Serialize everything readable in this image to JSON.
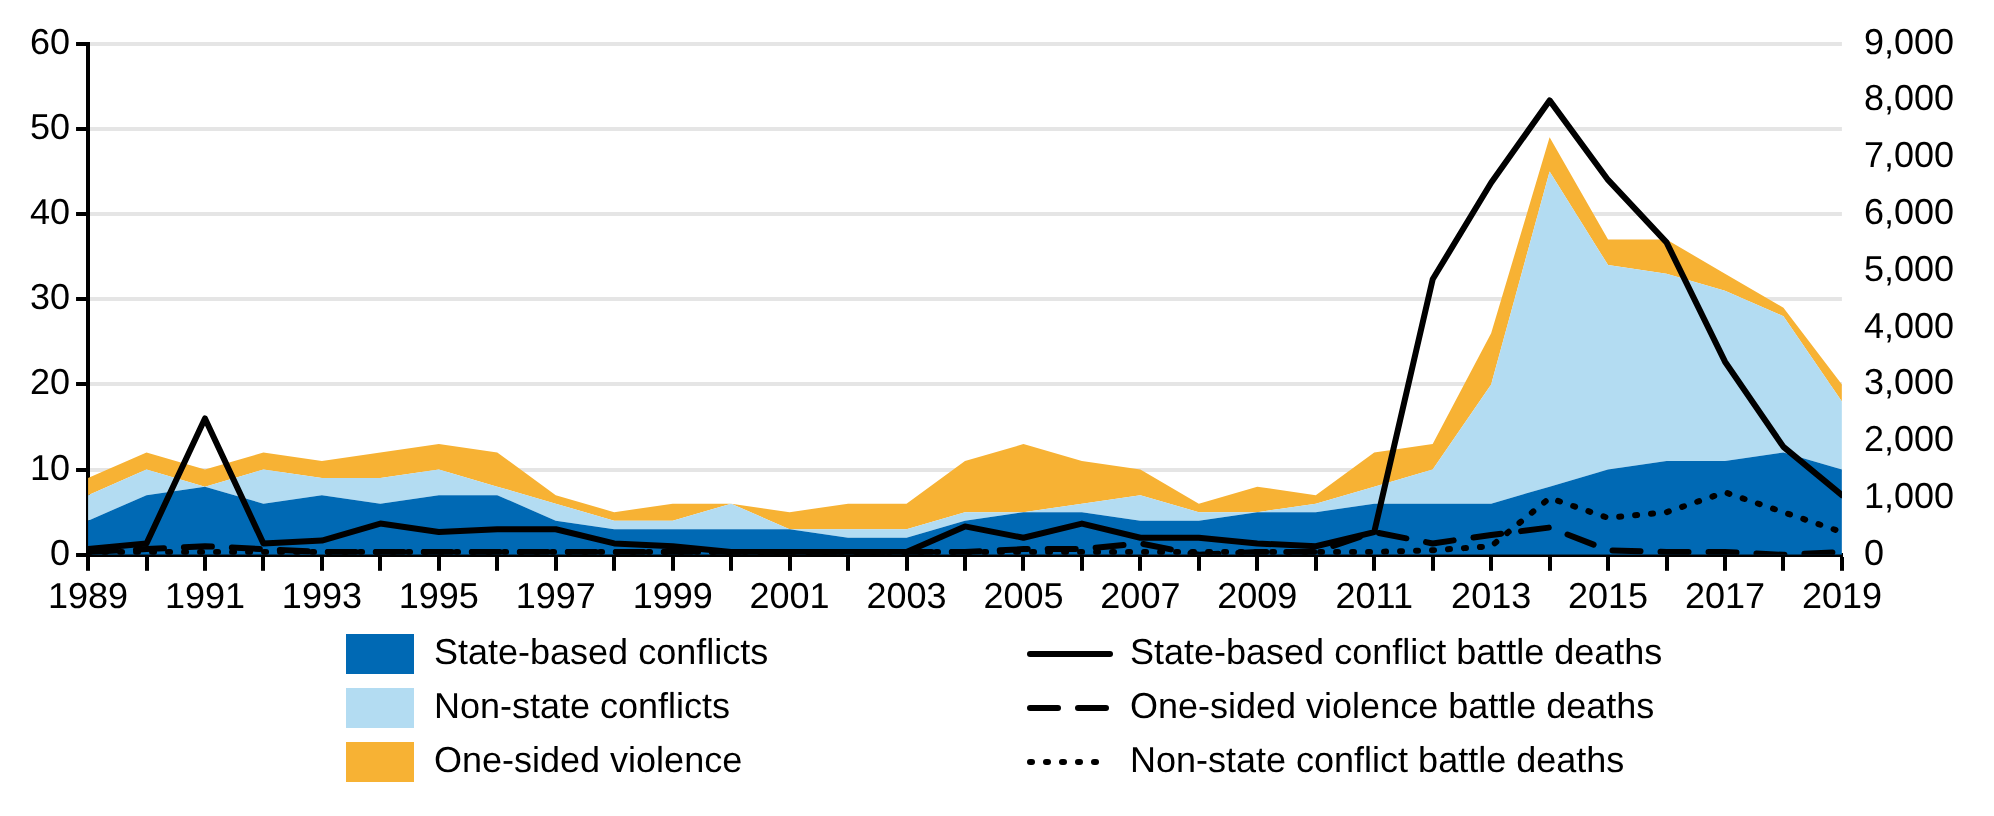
{
  "chart_data": {
    "type": "area",
    "stacked": true,
    "x": [
      1989,
      1990,
      1991,
      1992,
      1993,
      1994,
      1995,
      1996,
      1997,
      1998,
      1999,
      2000,
      2001,
      2002,
      2003,
      2004,
      2005,
      2006,
      2007,
      2008,
      2009,
      2010,
      2011,
      2012,
      2013,
      2014,
      2015,
      2016,
      2017,
      2018,
      2019
    ],
    "series": [
      {
        "name": "State-based conflicts",
        "color": "#0069b4",
        "values": [
          4,
          7,
          8,
          6,
          7,
          6,
          7,
          7,
          4,
          3,
          3,
          3,
          3,
          2,
          2,
          4,
          5,
          5,
          4,
          4,
          5,
          5,
          6,
          6,
          6,
          8,
          10,
          11,
          11,
          12,
          10
        ]
      },
      {
        "name": "Non-state conflicts",
        "color": "#b3dcf2",
        "values": [
          3,
          3,
          0,
          4,
          2,
          3,
          3,
          1,
          2,
          1,
          1,
          3,
          0,
          1,
          1,
          1,
          0,
          1,
          3,
          1,
          0,
          1,
          2,
          4,
          14,
          37,
          24,
          22,
          20,
          16,
          8
        ]
      },
      {
        "name": "One-sided violence",
        "color": "#f7b234",
        "values": [
          2,
          2,
          2,
          2,
          2,
          3,
          3,
          4,
          1,
          1,
          2,
          0,
          2,
          3,
          3,
          6,
          8,
          5,
          3,
          1,
          3,
          1,
          4,
          3,
          6,
          4,
          3,
          4,
          2,
          1,
          2
        ]
      },
      {
        "name": "State-based conflict battle deaths",
        "type": "line",
        "axis": "y2",
        "line_style": "solid",
        "color": "#000000",
        "values": [
          100,
          200,
          2400,
          200,
          250,
          550,
          400,
          450,
          450,
          200,
          150,
          50,
          50,
          50,
          50,
          500,
          300,
          550,
          300,
          300,
          200,
          150,
          400,
          4850,
          6550,
          8000,
          6600,
          5500,
          3400,
          1900,
          1050
        ]
      },
      {
        "name": "One-sided violence battle deaths",
        "type": "line",
        "axis": "y2",
        "line_style": "dashed",
        "color": "#000000",
        "values": [
          50,
          100,
          150,
          100,
          50,
          50,
          50,
          50,
          50,
          50,
          50,
          50,
          50,
          50,
          50,
          50,
          100,
          100,
          200,
          0,
          50,
          50,
          400,
          200,
          350,
          480,
          80,
          50,
          50,
          0,
          50
        ]
      },
      {
        "name": "Non-state conflict battle deaths",
        "type": "line",
        "axis": "y2",
        "line_style": "dotted",
        "color": "#000000",
        "values": [
          50,
          50,
          50,
          50,
          50,
          50,
          50,
          50,
          50,
          50,
          50,
          50,
          50,
          50,
          50,
          50,
          50,
          50,
          50,
          50,
          50,
          50,
          50,
          80,
          150,
          1000,
          650,
          750,
          1100,
          750,
          400
        ]
      }
    ],
    "xlim": [
      1989,
      2019
    ],
    "xticks": [
      1989,
      {
        "value": 1990,
        "label": null
      },
      1991,
      {
        "value": 1992,
        "label": null
      },
      1993,
      {
        "value": 1994,
        "label": null
      },
      1995,
      {
        "value": 1996,
        "label": null
      },
      1997,
      {
        "value": 1998,
        "label": null
      },
      1999,
      {
        "value": 2000,
        "label": null
      },
      2001,
      {
        "value": 2002,
        "label": null
      },
      2003,
      {
        "value": 2004,
        "label": null
      },
      2005,
      {
        "value": 2006,
        "label": null
      },
      2007,
      {
        "value": 2008,
        "label": null
      },
      2009,
      {
        "value": 2010,
        "label": null
      },
      2011,
      {
        "value": 2012,
        "label": null
      },
      2013,
      {
        "value": 2014,
        "label": null
      },
      2015,
      {
        "value": 2016,
        "label": null
      },
      2017,
      {
        "value": 2018,
        "label": null
      },
      2019
    ],
    "ylim": [
      0,
      60
    ],
    "yticks": [
      0,
      10,
      20,
      30,
      40,
      50,
      60
    ],
    "y2lim": [
      0,
      9000
    ],
    "y2ticks": [
      {
        "value": 0,
        "label": "0"
      },
      {
        "value": 1000,
        "label": "1,000"
      },
      {
        "value": 2000,
        "label": "2,000"
      },
      {
        "value": 3000,
        "label": "3,000"
      },
      {
        "value": 4000,
        "label": "4,000"
      },
      {
        "value": 5000,
        "label": "5,000"
      },
      {
        "value": 6000,
        "label": "6,000"
      },
      {
        "value": 7000,
        "label": "7,000"
      },
      {
        "value": 8000,
        "label": "8,000"
      },
      {
        "value": 9000,
        "label": "9,000"
      }
    ],
    "grid": "y",
    "legend": "bottom"
  }
}
